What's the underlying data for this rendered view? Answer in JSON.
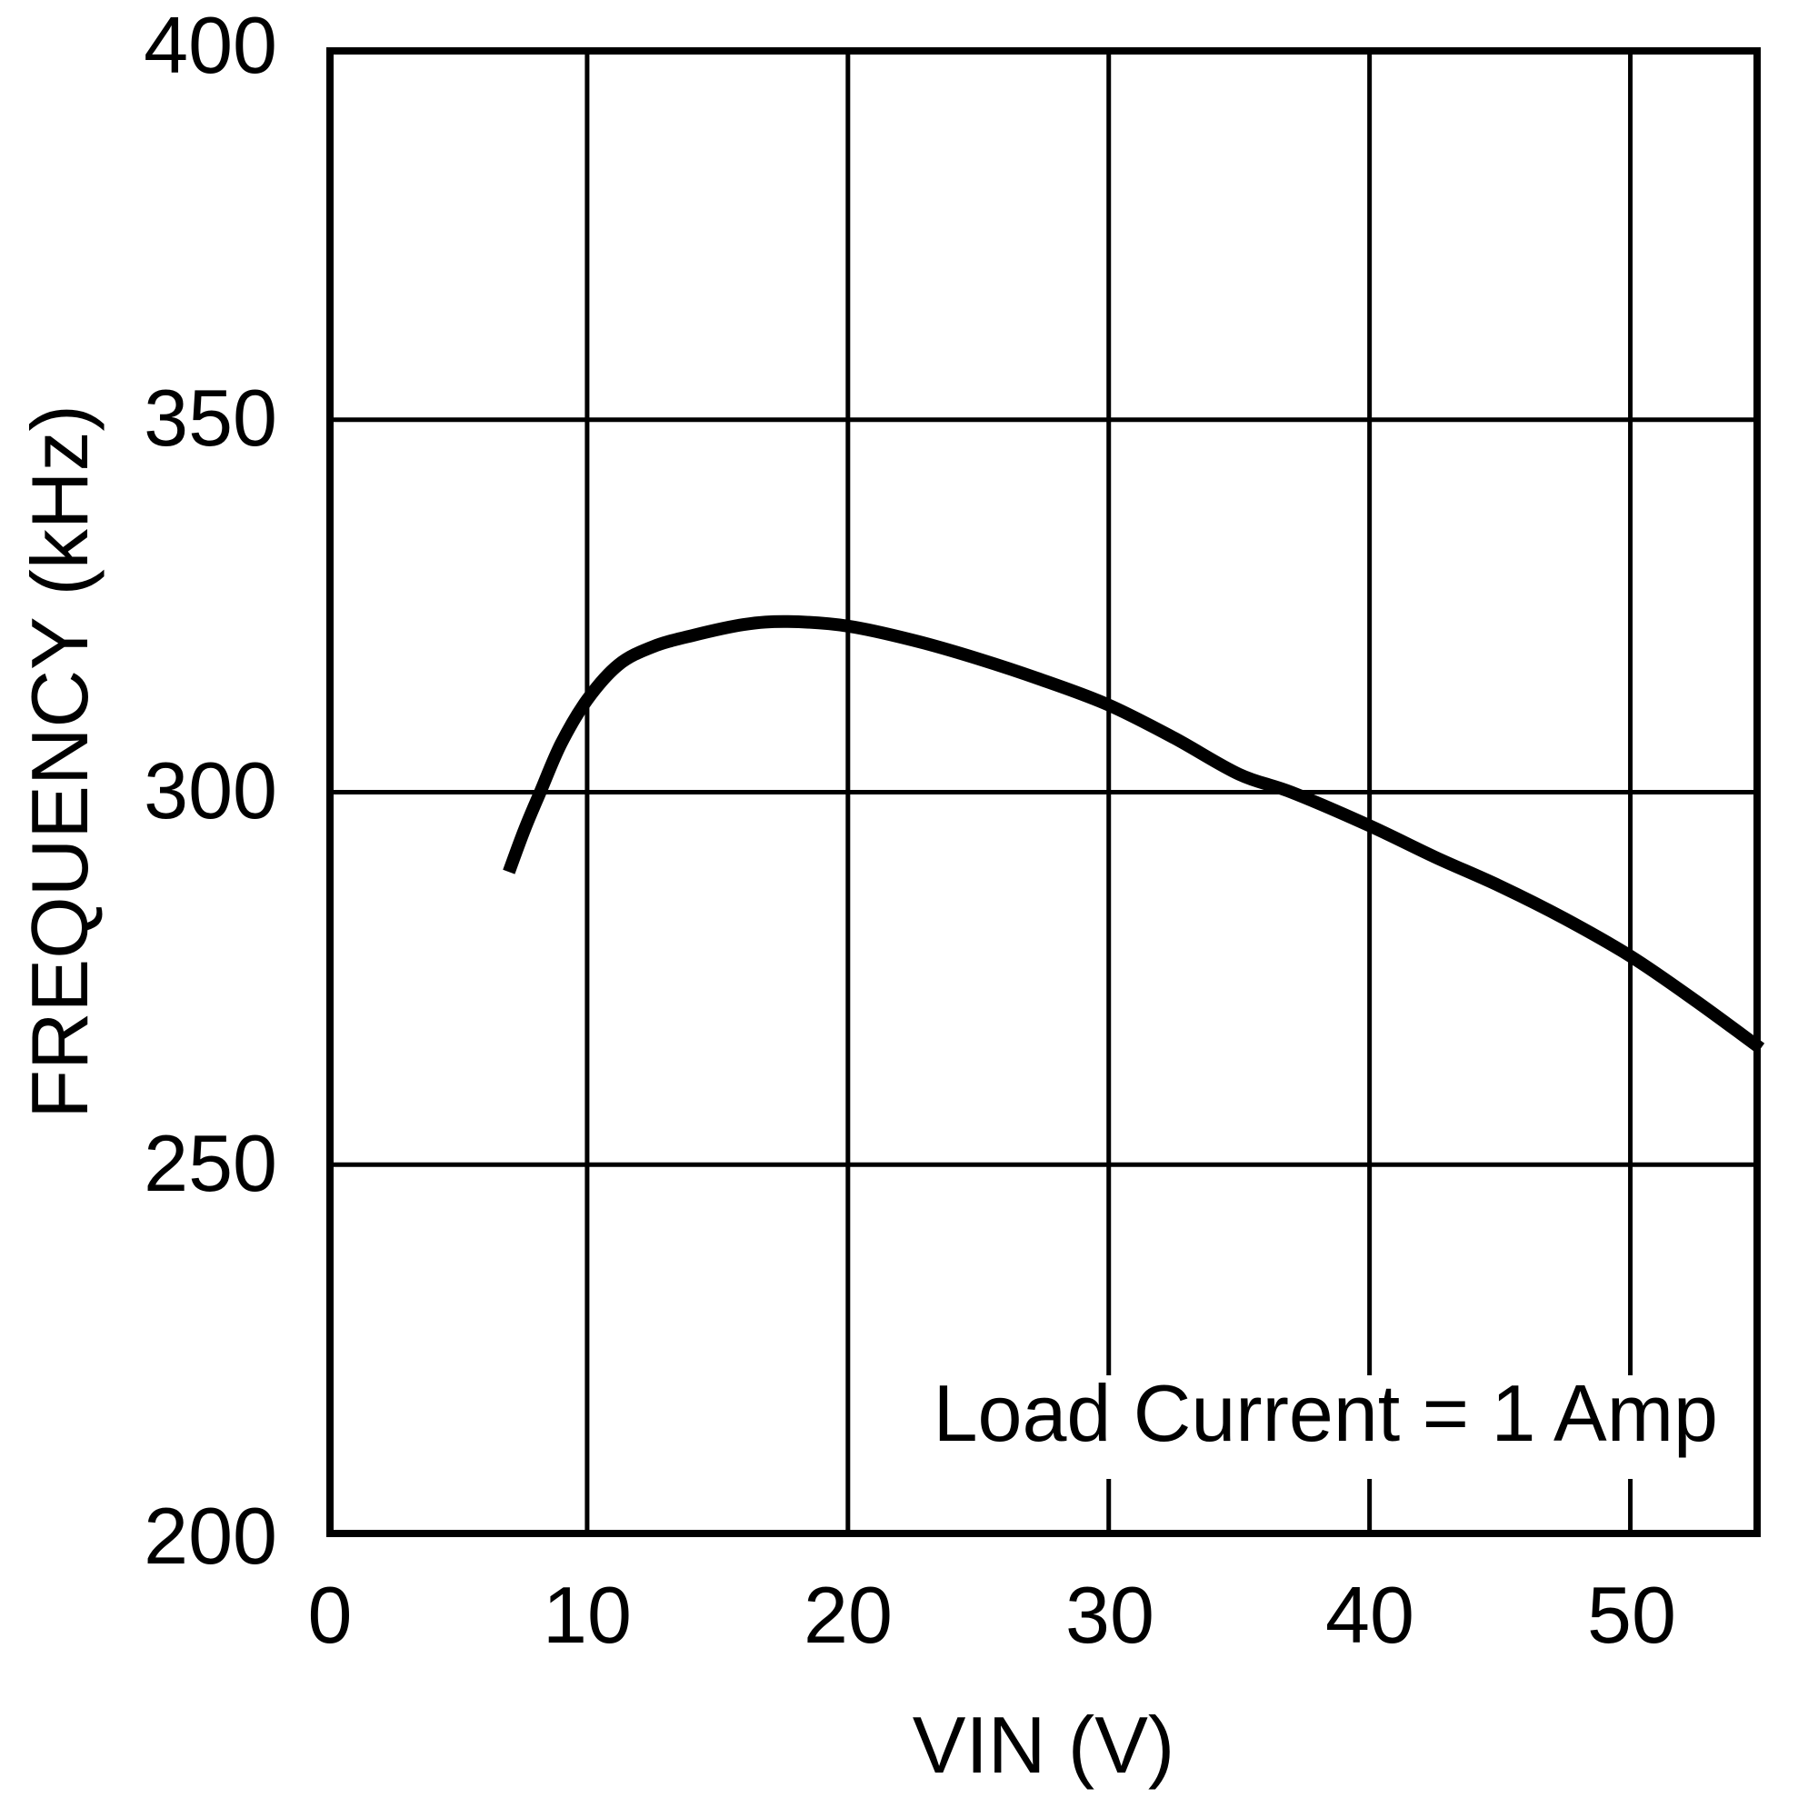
{
  "chart_data": {
    "type": "line",
    "title": "",
    "xlabel": "VIN (V)",
    "ylabel": "FREQUENCY (kHz)",
    "xlim": [
      0,
      55
    ],
    "ylim": [
      200,
      400
    ],
    "x_ticks": [
      0,
      10,
      20,
      30,
      40,
      50
    ],
    "y_ticks": [
      200,
      250,
      300,
      350,
      400
    ],
    "x_tick_labels": [
      "0",
      "10",
      "20",
      "30",
      "40",
      "50"
    ],
    "y_tick_labels": [
      "200",
      "250",
      "300",
      "350",
      "400"
    ],
    "grid": true,
    "legend": null,
    "annotations": [
      {
        "text": "Load Current = 1 Amp",
        "position": "lower-right"
      }
    ],
    "series": [
      {
        "name": "Load Current = 1 Amp",
        "color": "#000000",
        "x": [
          7.0,
          7.6,
          8.2,
          9.0,
          10.0,
          11.2,
          12.5,
          14.0,
          16.0,
          17.7,
          20.0,
          22.5,
          25.0,
          27.5,
          30.0,
          32.5,
          35.0,
          37.0,
          40.0,
          42.5,
          45.0,
          47.5,
          50.0,
          52.5,
          55.0
        ],
        "y": [
          289.3,
          295.0,
          300.0,
          306.5,
          312.4,
          317.1,
          319.5,
          321.0,
          322.5,
          322.9,
          322.3,
          320.4,
          317.9,
          315.0,
          311.7,
          307.3,
          302.4,
          300.0,
          295.5,
          291.3,
          287.4,
          283.0,
          278.0,
          272.0,
          265.6
        ]
      }
    ]
  },
  "labels": {
    "x_axis_title": "VIN (V)",
    "y_axis_title": "FREQUENCY (kHz)",
    "annotation": "Load Current = 1 Amp",
    "x_ticks": [
      "0",
      "10",
      "20",
      "30",
      "40",
      "50"
    ],
    "y_ticks": [
      "400",
      "350",
      "300",
      "250",
      "200"
    ]
  },
  "colors": {
    "line": "#000000",
    "grid": "#000000",
    "background": "#ffffff"
  }
}
